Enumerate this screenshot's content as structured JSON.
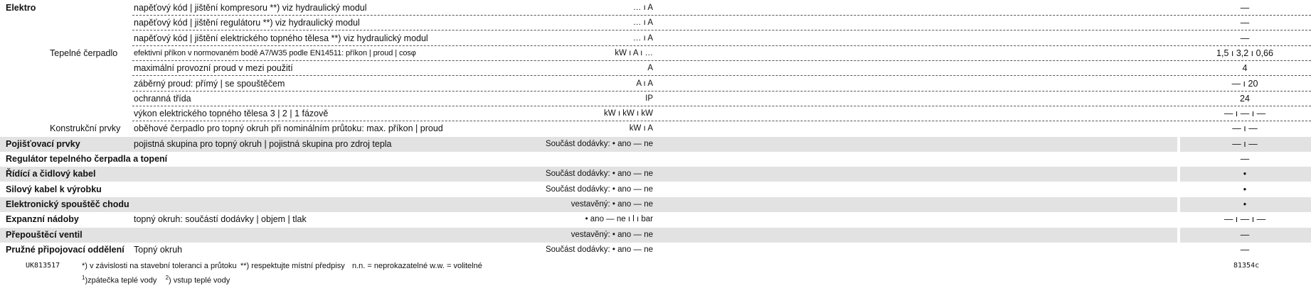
{
  "rows": [
    {
      "cat": "Elektro",
      "sub": "",
      "desc": "napěťový kód | jištění kompresoru **)     viz hydraulický modul",
      "unit": "… ı A",
      "val": "—",
      "dashed": true,
      "shade": false
    },
    {
      "cat": "",
      "sub": "",
      "desc": "napěťový kód | jištění regulátoru **)     viz hydraulický modul",
      "unit": "… ı A",
      "val": "—",
      "dashed": true,
      "shade": false
    },
    {
      "cat": "",
      "sub": "",
      "desc": "napěťový kód | jištění elektrického topného tělesa **)     viz hydraulický modul",
      "unit": "… ı A",
      "val": "—",
      "dashed": true,
      "shade": false
    },
    {
      "cat": "",
      "sub": "Tepelné čerpadlo",
      "desc": "efektivní příkon v normovaném bodě A7/W35 podle EN14511: příkon  |  proud  |  cosφ",
      "unit": "kW  ı  A  ı  …",
      "val": "1,5  ı  3,2  ı  0,66",
      "dashed": true,
      "shade": false,
      "small": true
    },
    {
      "cat": "",
      "sub": "",
      "desc": "maximální provozní proud v mezi použití",
      "unit": "A",
      "val": "4",
      "dashed": true,
      "shade": false
    },
    {
      "cat": "",
      "sub": "",
      "desc": "záběrný proud: přímý  |  se spouštěčem",
      "unit": "A  ı  A",
      "val": "—  ı  20",
      "dashed": true,
      "shade": false
    },
    {
      "cat": "",
      "sub": "",
      "desc": "ochranná třída",
      "unit": "IP",
      "val": "24",
      "dashed": true,
      "shade": false
    },
    {
      "cat": "",
      "sub": "",
      "desc": "výkon elektrického topného tělesa  3  |  2  |  1  fázově",
      "unit": "kW  ı  kW  ı  kW",
      "val": "— ı  —  ı  —",
      "dashed": true,
      "shade": false
    },
    {
      "cat": "",
      "sub": "Konstrukční prvky",
      "desc": "oběhové čerpadlo pro topný okruh při nominálním průtoku: max. příkon  |  proud",
      "unit": "kW  ı  A",
      "val": "— ı —",
      "dashed": false,
      "shade": false
    },
    {
      "cat": "Pojišťovací prvky",
      "sub": "",
      "desc": "pojistná skupina pro topný okruh  |  pojistná skupina pro zdroj tepla",
      "unit": "Součást dodávky: • ano   — ne",
      "val": "— ı —",
      "dashed": false,
      "shade": true
    },
    {
      "cat": "Regulátor tepelného čerpadla a topení",
      "sub": "",
      "desc": "",
      "unit": "",
      "val": "—",
      "dashed": false,
      "shade": false
    },
    {
      "cat": "Řídící a čidlový kabel",
      "sub": "",
      "desc": "",
      "unit": "Součást dodávky: • ano   — ne",
      "val": "•",
      "dashed": false,
      "shade": true
    },
    {
      "cat": "Silový kabel k výrobku",
      "sub": "",
      "desc": "",
      "unit": "Součást dodávky: • ano   — ne",
      "val": "•",
      "dashed": false,
      "shade": false
    },
    {
      "cat": "Elektronický spouštěč chodu",
      "sub": "",
      "desc": "",
      "unit": "vestavěný: • ano   — ne",
      "val": "•",
      "dashed": false,
      "shade": true
    },
    {
      "cat": "Expanzní nádoby",
      "sub": "",
      "desc": "topný okruh: součástí dodávky  |  objem  |  tlak",
      "unit": "• ano   — ne  ı  l  ı  bar",
      "val": "—  ı  —  ı  —",
      "dashed": false,
      "shade": false
    },
    {
      "cat": "Přepouštěcí ventil",
      "sub": "",
      "desc": "",
      "unit": "vestavěný: • ano   — ne",
      "val": "—",
      "dashed": false,
      "shade": true
    },
    {
      "cat": "Pružné připojovací oddělení",
      "sub": "",
      "desc": "Topný okruh",
      "unit": "Součást dodávky: • ano   — ne",
      "val": "—",
      "dashed": false,
      "shade": false
    }
  ],
  "footer": {
    "code_left": "UK813517",
    "note1": "*) v závislosti na stavební toleranci a průtoku",
    "note2": "**) respektujte místní předpisy",
    "note3": "n.n. = neprokazatelné  w.w. = volitelné",
    "note4_sup1": "1",
    "note4_a": ")zpátečka teplé vody",
    "note4_sup2": "2",
    "note4_b": ") vstup teplé vody",
    "code_right": "81354c"
  }
}
